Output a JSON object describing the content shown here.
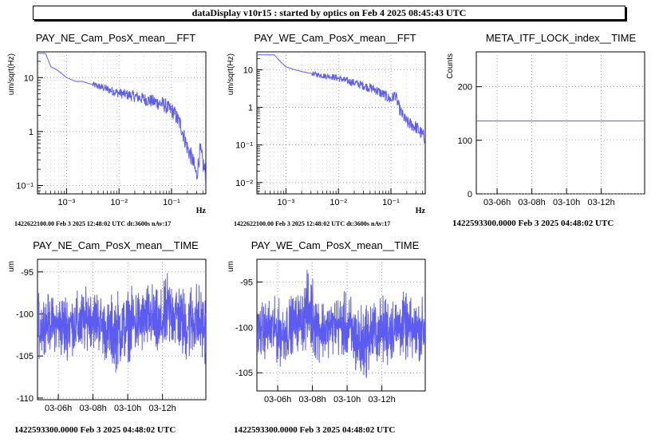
{
  "window_title": "dataDisplay v10r15 : started by optics on Feb  4 2025 08:45:43 UTC",
  "plot_color": "#5c5cf0",
  "chart_data": [
    {
      "id": "ne-fft",
      "type": "line",
      "title": "PAY_NE_Cam_PosX_mean__FFT",
      "xlabel": "Hz",
      "ylabel": "um/sqrt(Hz)",
      "xscale": "log",
      "yscale": "log",
      "xlim": [
        0.00028,
        0.45
      ],
      "ylim": [
        0.07,
        30
      ],
      "xticks": [
        {
          "v": 0.001,
          "label": "10⁻³"
        },
        {
          "v": 0.01,
          "label": "10⁻²"
        },
        {
          "v": 0.1,
          "label": "10⁻¹"
        }
      ],
      "yticks": [
        {
          "v": 0.1,
          "label": "10⁻¹"
        },
        {
          "v": 1,
          "label": "1"
        },
        {
          "v": 10,
          "label": "10"
        }
      ],
      "grid": true,
      "footer": "1422622100.00 Feb 3 2025 12:48:02 UTC dt:3600s nAv:17",
      "series": [
        {
          "x": [
            0.00028,
            0.0004,
            0.0005,
            0.00065,
            0.0008,
            0.001,
            0.0015,
            0.002,
            0.003,
            0.005,
            0.008,
            0.012,
            0.02,
            0.03,
            0.05,
            0.07,
            0.09,
            0.11,
            0.15,
            0.2,
            0.25,
            0.3,
            0.35,
            0.4,
            0.45
          ],
          "y": [
            28,
            28,
            16,
            14,
            12,
            10,
            8.5,
            8.5,
            7.5,
            6.5,
            5.5,
            5,
            4.5,
            4,
            3.5,
            3.2,
            2.6,
            2.3,
            1.3,
            0.5,
            0.3,
            0.15,
            0.45,
            0.25,
            0.15
          ]
        }
      ]
    },
    {
      "id": "we-fft",
      "type": "line",
      "title": "PAY_WE_Cam_PosX_mean__FFT",
      "xlabel": "Hz",
      "ylabel": "um/sqrt(Hz)",
      "xscale": "log",
      "yscale": "log",
      "xlim": [
        0.00028,
        0.45
      ],
      "ylim": [
        0.005,
        30
      ],
      "xticks": [
        {
          "v": 0.001,
          "label": "10⁻³"
        },
        {
          "v": 0.01,
          "label": "10⁻²"
        },
        {
          "v": 0.1,
          "label": "10⁻¹"
        }
      ],
      "yticks": [
        {
          "v": 0.01,
          "label": "10⁻²"
        },
        {
          "v": 0.1,
          "label": "10⁻¹"
        },
        {
          "v": 1,
          "label": "1"
        },
        {
          "v": 10,
          "label": "10"
        }
      ],
      "grid": true,
      "footer": "1422622100.00 Feb 3 2025 12:48:02 UTC dt:3600s nAv:17",
      "series": [
        {
          "x": [
            0.00028,
            0.0006,
            0.0008,
            0.001,
            0.0015,
            0.002,
            0.003,
            0.005,
            0.008,
            0.012,
            0.02,
            0.03,
            0.05,
            0.08,
            0.1,
            0.12,
            0.15,
            0.2,
            0.3,
            0.45
          ],
          "y": [
            25,
            25,
            16,
            12,
            10,
            9,
            8,
            7,
            6.5,
            5.5,
            4.5,
            3.8,
            3,
            2,
            1.6,
            2.2,
            0.8,
            0.4,
            0.3,
            0.15
          ]
        }
      ]
    },
    {
      "id": "meta-lock",
      "type": "line",
      "title": "META_ITF_LOCK_index__TIME",
      "xlabel": "",
      "ylabel": "Counts",
      "xlim": [
        4.8,
        14.5
      ],
      "ylim": [
        0,
        265
      ],
      "xticks": [
        {
          "v": 6,
          "label": "03-06h"
        },
        {
          "v": 8,
          "label": "03-08h"
        },
        {
          "v": 10,
          "label": "03-10h"
        },
        {
          "v": 12,
          "label": "03-12h"
        }
      ],
      "yticks": [
        {
          "v": 0,
          "label": "0"
        },
        {
          "v": 100,
          "label": "100"
        },
        {
          "v": 200,
          "label": "200"
        }
      ],
      "grid": true,
      "footer": "1422593300.0000 Feb 3 2025 04:48:02 UTC",
      "series": [
        {
          "x": [
            4.8,
            14.5
          ],
          "y": [
            136,
            136
          ]
        }
      ]
    },
    {
      "id": "ne-time",
      "type": "line",
      "title": "PAY_NE_Cam_PosX_mean__TIME",
      "xlabel": "",
      "ylabel": "um",
      "xlim": [
        4.8,
        14.5
      ],
      "ylim": [
        -110.2,
        -93.5
      ],
      "xticks": [
        {
          "v": 6,
          "label": "03-06h"
        },
        {
          "v": 8,
          "label": "03-08h"
        },
        {
          "v": 10,
          "label": "03-10h"
        },
        {
          "v": 12,
          "label": "03-12h"
        }
      ],
      "yticks": [
        {
          "v": -110,
          "label": "-110"
        },
        {
          "v": -105,
          "label": "-105"
        },
        {
          "v": -100,
          "label": "-100"
        },
        {
          "v": -95,
          "label": "-95"
        }
      ],
      "grid": true,
      "footer": "1422593300.0000 Feb 3 2025 04:48:02 UTC",
      "series": [
        {
          "x": [
            4.8,
            5.3,
            5.8,
            6.3,
            6.8,
            7.3,
            7.8,
            8.3,
            8.8,
            9.3,
            9.8,
            10.3,
            10.8,
            11.3,
            11.8,
            12.3,
            12.8,
            13.3,
            13.8,
            14.5
          ],
          "y_min": [
            -106,
            -104.5,
            -104.5,
            -106,
            -105,
            -105.5,
            -104,
            -104.5,
            -106,
            -107,
            -106,
            -105.5,
            -105,
            -104.5,
            -106,
            -104.5,
            -104.5,
            -106,
            -105.5,
            -106
          ],
          "y_max": [
            -97.5,
            -97.5,
            -98,
            -97,
            -97.5,
            -97,
            -96.5,
            -97,
            -98.5,
            -97,
            -97.5,
            -96.5,
            -97,
            -96,
            -97.5,
            -95,
            -95.5,
            -97,
            -95.5,
            -97.5
          ]
        }
      ]
    },
    {
      "id": "we-time",
      "type": "line",
      "title": "PAY_WE_Cam_PosX_mean__TIME",
      "xlabel": "",
      "ylabel": "um",
      "xlim": [
        4.8,
        14.5
      ],
      "ylim": [
        -107,
        -92.5
      ],
      "xticks": [
        {
          "v": 6,
          "label": "03-06h"
        },
        {
          "v": 8,
          "label": "03-08h"
        },
        {
          "v": 10,
          "label": "03-10h"
        },
        {
          "v": 12,
          "label": "03-12h"
        }
      ],
      "yticks": [
        {
          "v": -105,
          "label": "-105"
        },
        {
          "v": -100,
          "label": "-100"
        },
        {
          "v": -95,
          "label": "-95"
        }
      ],
      "grid": true,
      "footer": "1422593300.0000 Feb 3 2025 04:48:02 UTC",
      "series": [
        {
          "x": [
            4.8,
            5.3,
            5.8,
            6.3,
            6.8,
            7.3,
            7.8,
            8.3,
            8.8,
            9.3,
            9.8,
            10.3,
            10.8,
            11.3,
            11.8,
            12.3,
            12.8,
            13.3,
            13.8,
            14.5
          ],
          "y_min": [
            -103.5,
            -103.5,
            -104,
            -104.5,
            -103,
            -102.5,
            -103,
            -104,
            -103.5,
            -103,
            -103.5,
            -105,
            -106.5,
            -105,
            -104,
            -104.5,
            -103.5,
            -103.5,
            -104,
            -103.5
          ],
          "y_max": [
            -97.5,
            -97,
            -96.5,
            -97,
            -96.5,
            -96,
            -93,
            -96,
            -97,
            -96.5,
            -96,
            -96.5,
            -97.5,
            -96.5,
            -97,
            -96,
            -96.5,
            -96,
            -97,
            -96.5
          ]
        }
      ]
    }
  ]
}
